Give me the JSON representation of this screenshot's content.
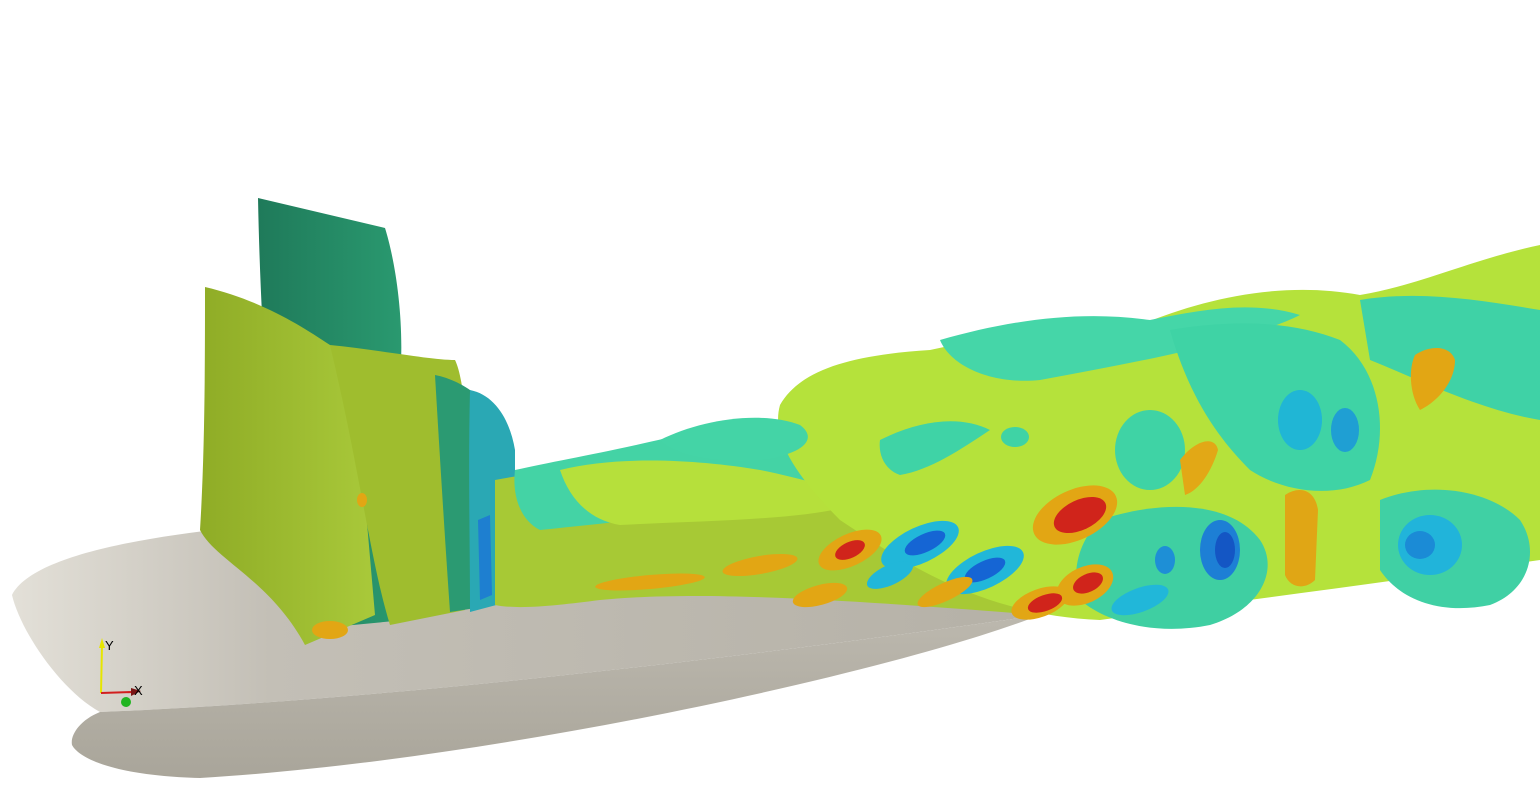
{
  "viewport": {
    "background": "#ffffff"
  },
  "colors": {
    "airfoil_light": "#d6d2ca",
    "airfoil_dark": "#aaa69b",
    "iso_dark_green": "#228060",
    "iso_olive": "#9fbd2e",
    "iso_yellow_green": "#b7e33a",
    "iso_teal": "#3fd9a8",
    "iso_cyan": "#21b7d9",
    "iso_blue": "#1565d4",
    "iso_orange": "#e2a614",
    "iso_red": "#d0241b"
  },
  "orientation_axes": {
    "labels": {
      "y": "Y",
      "x": "X"
    },
    "colors": {
      "y": "#e6e600",
      "x": "#d21f1f",
      "z": "#21b521"
    }
  }
}
